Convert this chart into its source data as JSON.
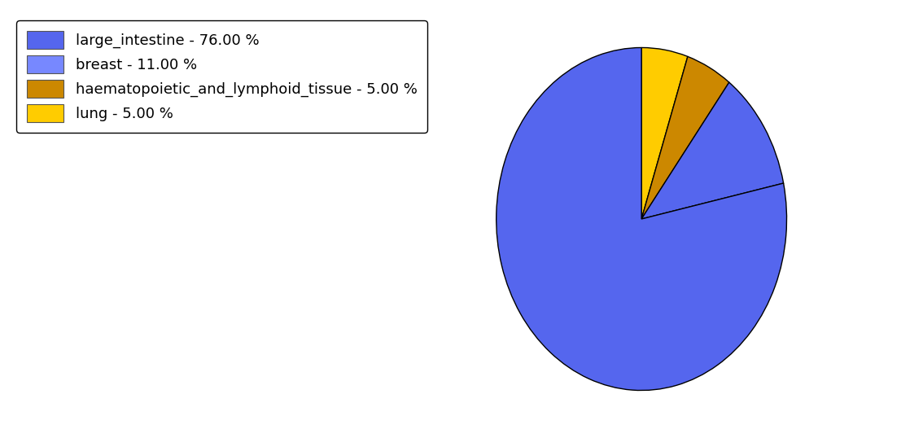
{
  "labels": [
    "large_intestine",
    "breast",
    "haematopoietic_and_lymphoid_tissue",
    "lung"
  ],
  "values": [
    76.0,
    11.0,
    5.0,
    5.0
  ],
  "colors": [
    "#5566ee",
    "#5566ee",
    "#cc8800",
    "#ffcc00"
  ],
  "legend_labels": [
    "large_intestine - 76.00 %",
    "breast - 11.00 %",
    "haematopoietic_and_lymphoid_tissue - 5.00 %",
    "lung - 5.00 %"
  ],
  "legend_colors": [
    "#5566ee",
    "#7788ff",
    "#cc8800",
    "#ffcc00"
  ],
  "background_color": "#ffffff",
  "edge_color": "#000000",
  "startangle": 90,
  "counterclock": false,
  "figsize": [
    11.34,
    5.38
  ],
  "dpi": 100
}
